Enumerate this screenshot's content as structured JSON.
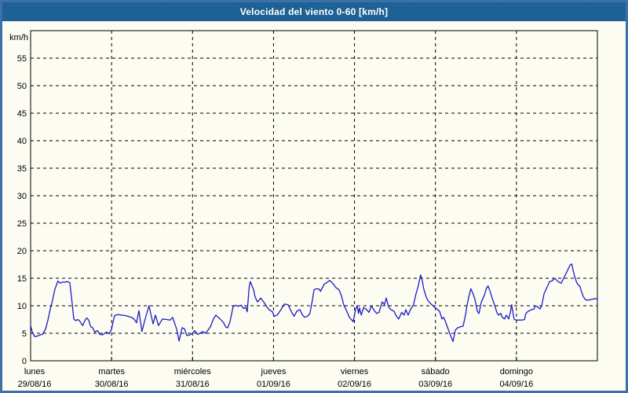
{
  "window": {
    "title": "Velocidad del viento 0-60 [km/h]"
  },
  "colors": {
    "frame": "#3a71a6",
    "titlebar": "#1e6296",
    "titlebar_dots": "#18577f",
    "title_text": "#ffffff",
    "background": "#fcfcf2",
    "grid": "#000000",
    "axis": "#000000",
    "tick_text": "#000000",
    "series": "#1b1bc8"
  },
  "chart_data": {
    "type": "line",
    "title": "Velocidad del viento 0-60 [km/h]",
    "ylabel": "km/h",
    "xlabel": "",
    "ylim": [
      0,
      60
    ],
    "yticks": [
      0,
      5,
      10,
      15,
      20,
      25,
      30,
      35,
      40,
      45,
      50,
      55
    ],
    "xlim_hours": [
      0,
      168
    ],
    "grid": "dashed",
    "legend_position": "none",
    "days": [
      {
        "label": "lunes",
        "date": "29/08/16",
        "start_hour": 0
      },
      {
        "label": "martes",
        "date": "30/08/16",
        "start_hour": 24
      },
      {
        "label": "miércoles",
        "date": "31/08/16",
        "start_hour": 48
      },
      {
        "label": "jueves",
        "date": "01/09/16",
        "start_hour": 72
      },
      {
        "label": "viernes",
        "date": "02/09/16",
        "start_hour": 96
      },
      {
        "label": "sábado",
        "date": "03/09/16",
        "start_hour": 120
      },
      {
        "label": "domingo",
        "date": "04/09/16",
        "start_hour": 144
      }
    ],
    "series": [
      {
        "name": "velocidad del viento",
        "unit": "km/h",
        "color": "#1b1bc8",
        "points": [
          [
            0,
            6.4
          ],
          [
            0.5,
            5.2
          ],
          [
            1.2,
            4.4
          ],
          [
            2.1,
            4.5
          ],
          [
            2.8,
            4.7
          ],
          [
            3.5,
            4.8
          ],
          [
            4.4,
            5.7
          ],
          [
            5.1,
            7.3
          ],
          [
            5.8,
            9.3
          ],
          [
            6.5,
            11
          ],
          [
            7.2,
            13
          ],
          [
            8.1,
            14.5
          ],
          [
            8.8,
            14.1
          ],
          [
            9.5,
            14.3
          ],
          [
            10.2,
            14.3
          ],
          [
            10.9,
            14.4
          ],
          [
            11.6,
            14.2
          ],
          [
            12.3,
            10.5
          ],
          [
            12.8,
            7.6
          ],
          [
            13.3,
            7.3
          ],
          [
            14,
            7.5
          ],
          [
            14.7,
            7.1
          ],
          [
            15.4,
            6.4
          ],
          [
            16,
            7.2
          ],
          [
            16.6,
            7.8
          ],
          [
            17.2,
            7.4
          ],
          [
            17.8,
            6.2
          ],
          [
            18.4,
            6
          ],
          [
            19,
            5.2
          ],
          [
            19.8,
            5.5
          ],
          [
            20.5,
            4.8
          ],
          [
            21.3,
            4.7
          ],
          [
            22,
            5
          ],
          [
            22.6,
            5.2
          ],
          [
            23.3,
            4.9
          ],
          [
            24,
            5.7
          ],
          [
            24.4,
            7
          ],
          [
            24.9,
            8.2
          ],
          [
            25.8,
            8.4
          ],
          [
            27,
            8.3
          ],
          [
            28.2,
            8.2
          ],
          [
            29.3,
            8
          ],
          [
            30.2,
            7.8
          ],
          [
            30.9,
            7.4
          ],
          [
            31.4,
            6.9
          ],
          [
            32.1,
            9.1
          ],
          [
            33,
            5.3
          ],
          [
            33.9,
            7.5
          ],
          [
            35.1,
            10
          ],
          [
            36.3,
            6.7
          ],
          [
            37,
            8.3
          ],
          [
            37.9,
            6.4
          ],
          [
            39.1,
            7.6
          ],
          [
            40.2,
            7.5
          ],
          [
            41.4,
            7.4
          ],
          [
            42.1,
            7.9
          ],
          [
            43.3,
            5.7
          ],
          [
            44,
            3.6
          ],
          [
            44.9,
            6
          ],
          [
            45.6,
            5.8
          ],
          [
            46.3,
            4.6
          ],
          [
            47.2,
            4.7
          ],
          [
            48,
            5
          ],
          [
            48.6,
            5.5
          ],
          [
            49.6,
            4.8
          ],
          [
            51,
            5.3
          ],
          [
            51.9,
            5
          ],
          [
            53.3,
            6.2
          ],
          [
            54.2,
            7.6
          ],
          [
            54.9,
            8.3
          ],
          [
            55.6,
            7.9
          ],
          [
            56.5,
            7.4
          ],
          [
            57.2,
            6.9
          ],
          [
            57.9,
            6.1
          ],
          [
            58.4,
            6
          ],
          [
            59.1,
            7.1
          ],
          [
            60,
            9.8
          ],
          [
            60.7,
            10.1
          ],
          [
            61.4,
            9.9
          ],
          [
            62.4,
            10.1
          ],
          [
            63.1,
            9.5
          ],
          [
            63.8,
            9.7
          ],
          [
            64.2,
            8.9
          ],
          [
            64.8,
            13.5
          ],
          [
            65.1,
            14.4
          ],
          [
            66.1,
            12.9
          ],
          [
            66.5,
            11.7
          ],
          [
            67,
            11
          ],
          [
            67.3,
            10.7
          ],
          [
            68.2,
            11.4
          ],
          [
            69.3,
            10.5
          ],
          [
            70,
            9.8
          ],
          [
            70.7,
            9.3
          ],
          [
            71.7,
            8.9
          ],
          [
            72.2,
            8.1
          ],
          [
            73.1,
            8.3
          ],
          [
            74.2,
            9.3
          ],
          [
            75.2,
            10.3
          ],
          [
            76.3,
            10.2
          ],
          [
            77.4,
            8.8
          ],
          [
            78.1,
            8.1
          ],
          [
            78.9,
            9
          ],
          [
            79.8,
            9.3
          ],
          [
            80.5,
            8.4
          ],
          [
            81.2,
            7.9
          ],
          [
            82.1,
            8.1
          ],
          [
            82.8,
            8.6
          ],
          [
            83.5,
            11
          ],
          [
            84,
            12.9
          ],
          [
            84.7,
            13.1
          ],
          [
            85.6,
            13
          ],
          [
            85.9,
            12.6
          ],
          [
            87,
            13.9
          ],
          [
            88,
            14.3
          ],
          [
            88.7,
            14.6
          ],
          [
            89.8,
            13.9
          ],
          [
            90.5,
            13.3
          ],
          [
            91.4,
            12.9
          ],
          [
            92.1,
            11.9
          ],
          [
            92.8,
            10.2
          ],
          [
            93.8,
            8.9
          ],
          [
            94.5,
            7.9
          ],
          [
            95.2,
            7.4
          ],
          [
            95.6,
            7.1
          ],
          [
            96.3,
            9.3
          ],
          [
            96.8,
            10
          ],
          [
            97.2,
            8.6
          ],
          [
            97.5,
            9.6
          ],
          [
            98,
            8.3
          ],
          [
            98.7,
            9.7
          ],
          [
            99.6,
            9.3
          ],
          [
            100.3,
            8.8
          ],
          [
            101,
            10
          ],
          [
            101.9,
            9.1
          ],
          [
            102.6,
            8.6
          ],
          [
            103.3,
            8.8
          ],
          [
            104.2,
            10.7
          ],
          [
            104.9,
            10.2
          ],
          [
            105.4,
            11.4
          ],
          [
            106.1,
            9.8
          ],
          [
            106.8,
            9.3
          ],
          [
            107.7,
            9
          ],
          [
            108.4,
            8.1
          ],
          [
            109.1,
            7.6
          ],
          [
            110,
            8.8
          ],
          [
            110.7,
            8.3
          ],
          [
            111.2,
            9.3
          ],
          [
            111.9,
            8.3
          ],
          [
            112.6,
            9.3
          ],
          [
            113.5,
            10.2
          ],
          [
            114.2,
            12.1
          ],
          [
            114.9,
            13.6
          ],
          [
            115.6,
            15.6
          ],
          [
            116.1,
            14.5
          ],
          [
            116.5,
            13.1
          ],
          [
            117.2,
            11.7
          ],
          [
            117.7,
            11
          ],
          [
            118.4,
            10.5
          ],
          [
            118.9,
            10.2
          ],
          [
            119.6,
            9.8
          ],
          [
            120.7,
            9.3
          ],
          [
            121.2,
            9
          ],
          [
            121.7,
            8.1
          ],
          [
            121.9,
            7.6
          ],
          [
            122.4,
            7.9
          ],
          [
            122.8,
            7.4
          ],
          [
            123.5,
            6.2
          ],
          [
            124.2,
            5
          ],
          [
            125.2,
            3.5
          ],
          [
            125.9,
            5.6
          ],
          [
            126.6,
            6
          ],
          [
            127.5,
            6.2
          ],
          [
            128.2,
            6.3
          ],
          [
            128.9,
            8.3
          ],
          [
            129.4,
            10.2
          ],
          [
            129.9,
            11.7
          ],
          [
            130.5,
            13.1
          ],
          [
            131.2,
            12.1
          ],
          [
            131.7,
            11.2
          ],
          [
            132.4,
            9
          ],
          [
            132.9,
            8.6
          ],
          [
            133.3,
            9.8
          ],
          [
            133.6,
            10.7
          ],
          [
            134.5,
            11.9
          ],
          [
            135.2,
            13.3
          ],
          [
            135.6,
            13.6
          ],
          [
            136.3,
            12.4
          ],
          [
            136.8,
            11.4
          ],
          [
            137.5,
            10.2
          ],
          [
            138.2,
            8.8
          ],
          [
            138.7,
            8.3
          ],
          [
            139.4,
            8.6
          ],
          [
            139.8,
            7.9
          ],
          [
            140.5,
            7.6
          ],
          [
            141,
            8.3
          ],
          [
            141.7,
            7.6
          ],
          [
            142.2,
            8.8
          ],
          [
            142.6,
            10.2
          ],
          [
            142.9,
            9
          ],
          [
            143.3,
            7.6
          ],
          [
            143.8,
            7.4
          ],
          [
            145,
            7.4
          ],
          [
            145.7,
            7.4
          ],
          [
            146.4,
            7.5
          ],
          [
            146.8,
            8.6
          ],
          [
            147.5,
            9
          ],
          [
            148.5,
            9.3
          ],
          [
            149.2,
            9.4
          ],
          [
            149.6,
            10
          ],
          [
            150.3,
            9.8
          ],
          [
            151,
            9.4
          ],
          [
            151.5,
            10
          ],
          [
            152.2,
            12.2
          ],
          [
            153.1,
            13.4
          ],
          [
            153.8,
            14.4
          ],
          [
            154.5,
            14.5
          ],
          [
            155.4,
            15
          ],
          [
            156.1,
            14.5
          ],
          [
            156.6,
            14.3
          ],
          [
            157.3,
            14.1
          ],
          [
            158,
            15
          ],
          [
            158.9,
            16.1
          ],
          [
            159.8,
            17.3
          ],
          [
            160.4,
            17.6
          ],
          [
            161.1,
            15.7
          ],
          [
            161.8,
            14.3
          ],
          [
            162.4,
            13.7
          ],
          [
            162.8,
            13.6
          ],
          [
            163.1,
            12.9
          ],
          [
            163.8,
            11.7
          ],
          [
            164.3,
            11.2
          ],
          [
            165,
            11
          ],
          [
            165.9,
            11.1
          ],
          [
            166.6,
            11.2
          ],
          [
            167.3,
            11.3
          ],
          [
            168,
            11.2
          ]
        ]
      }
    ]
  }
}
